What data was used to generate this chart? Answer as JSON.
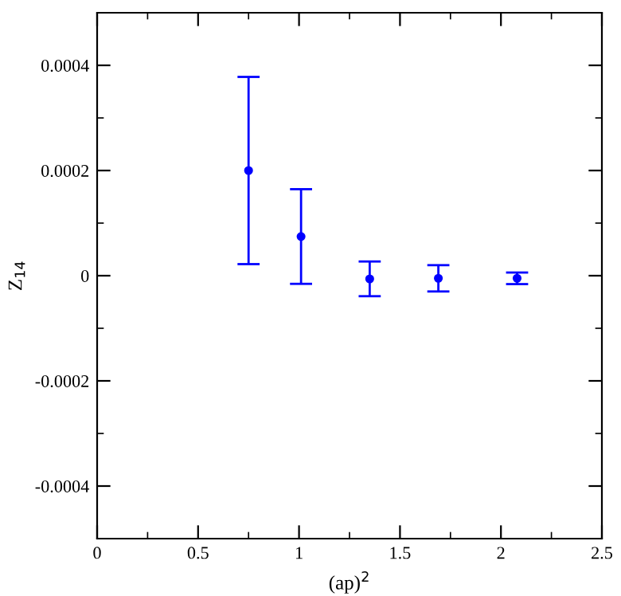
{
  "chart_data": {
    "type": "scatter",
    "xlabel": "(ap)$^{2}$",
    "ylabel": "Z$_{14}$",
    "x": [
      0.75,
      1.01,
      1.35,
      1.69,
      2.08
    ],
    "series": [
      {
        "color": "#0000ff",
        "values": [
          0.0002,
          7.45e-05,
          -6e-06,
          -5e-06,
          -5e-06
        ],
        "errors": [
          0.000178,
          9e-05,
          3.3e-05,
          2.5e-05,
          1.1e-05
        ]
      }
    ],
    "xlim": [
      0,
      2.5
    ],
    "xticks": [
      0,
      0.5,
      1,
      1.5,
      2,
      2.5
    ],
    "ylim": [
      -0.0005,
      0.0005
    ],
    "yticks": [
      -0.0004,
      -0.0002,
      0,
      0.0002,
      0.0004
    ],
    "grid": false,
    "legend": false,
    "marker": "circle"
  }
}
